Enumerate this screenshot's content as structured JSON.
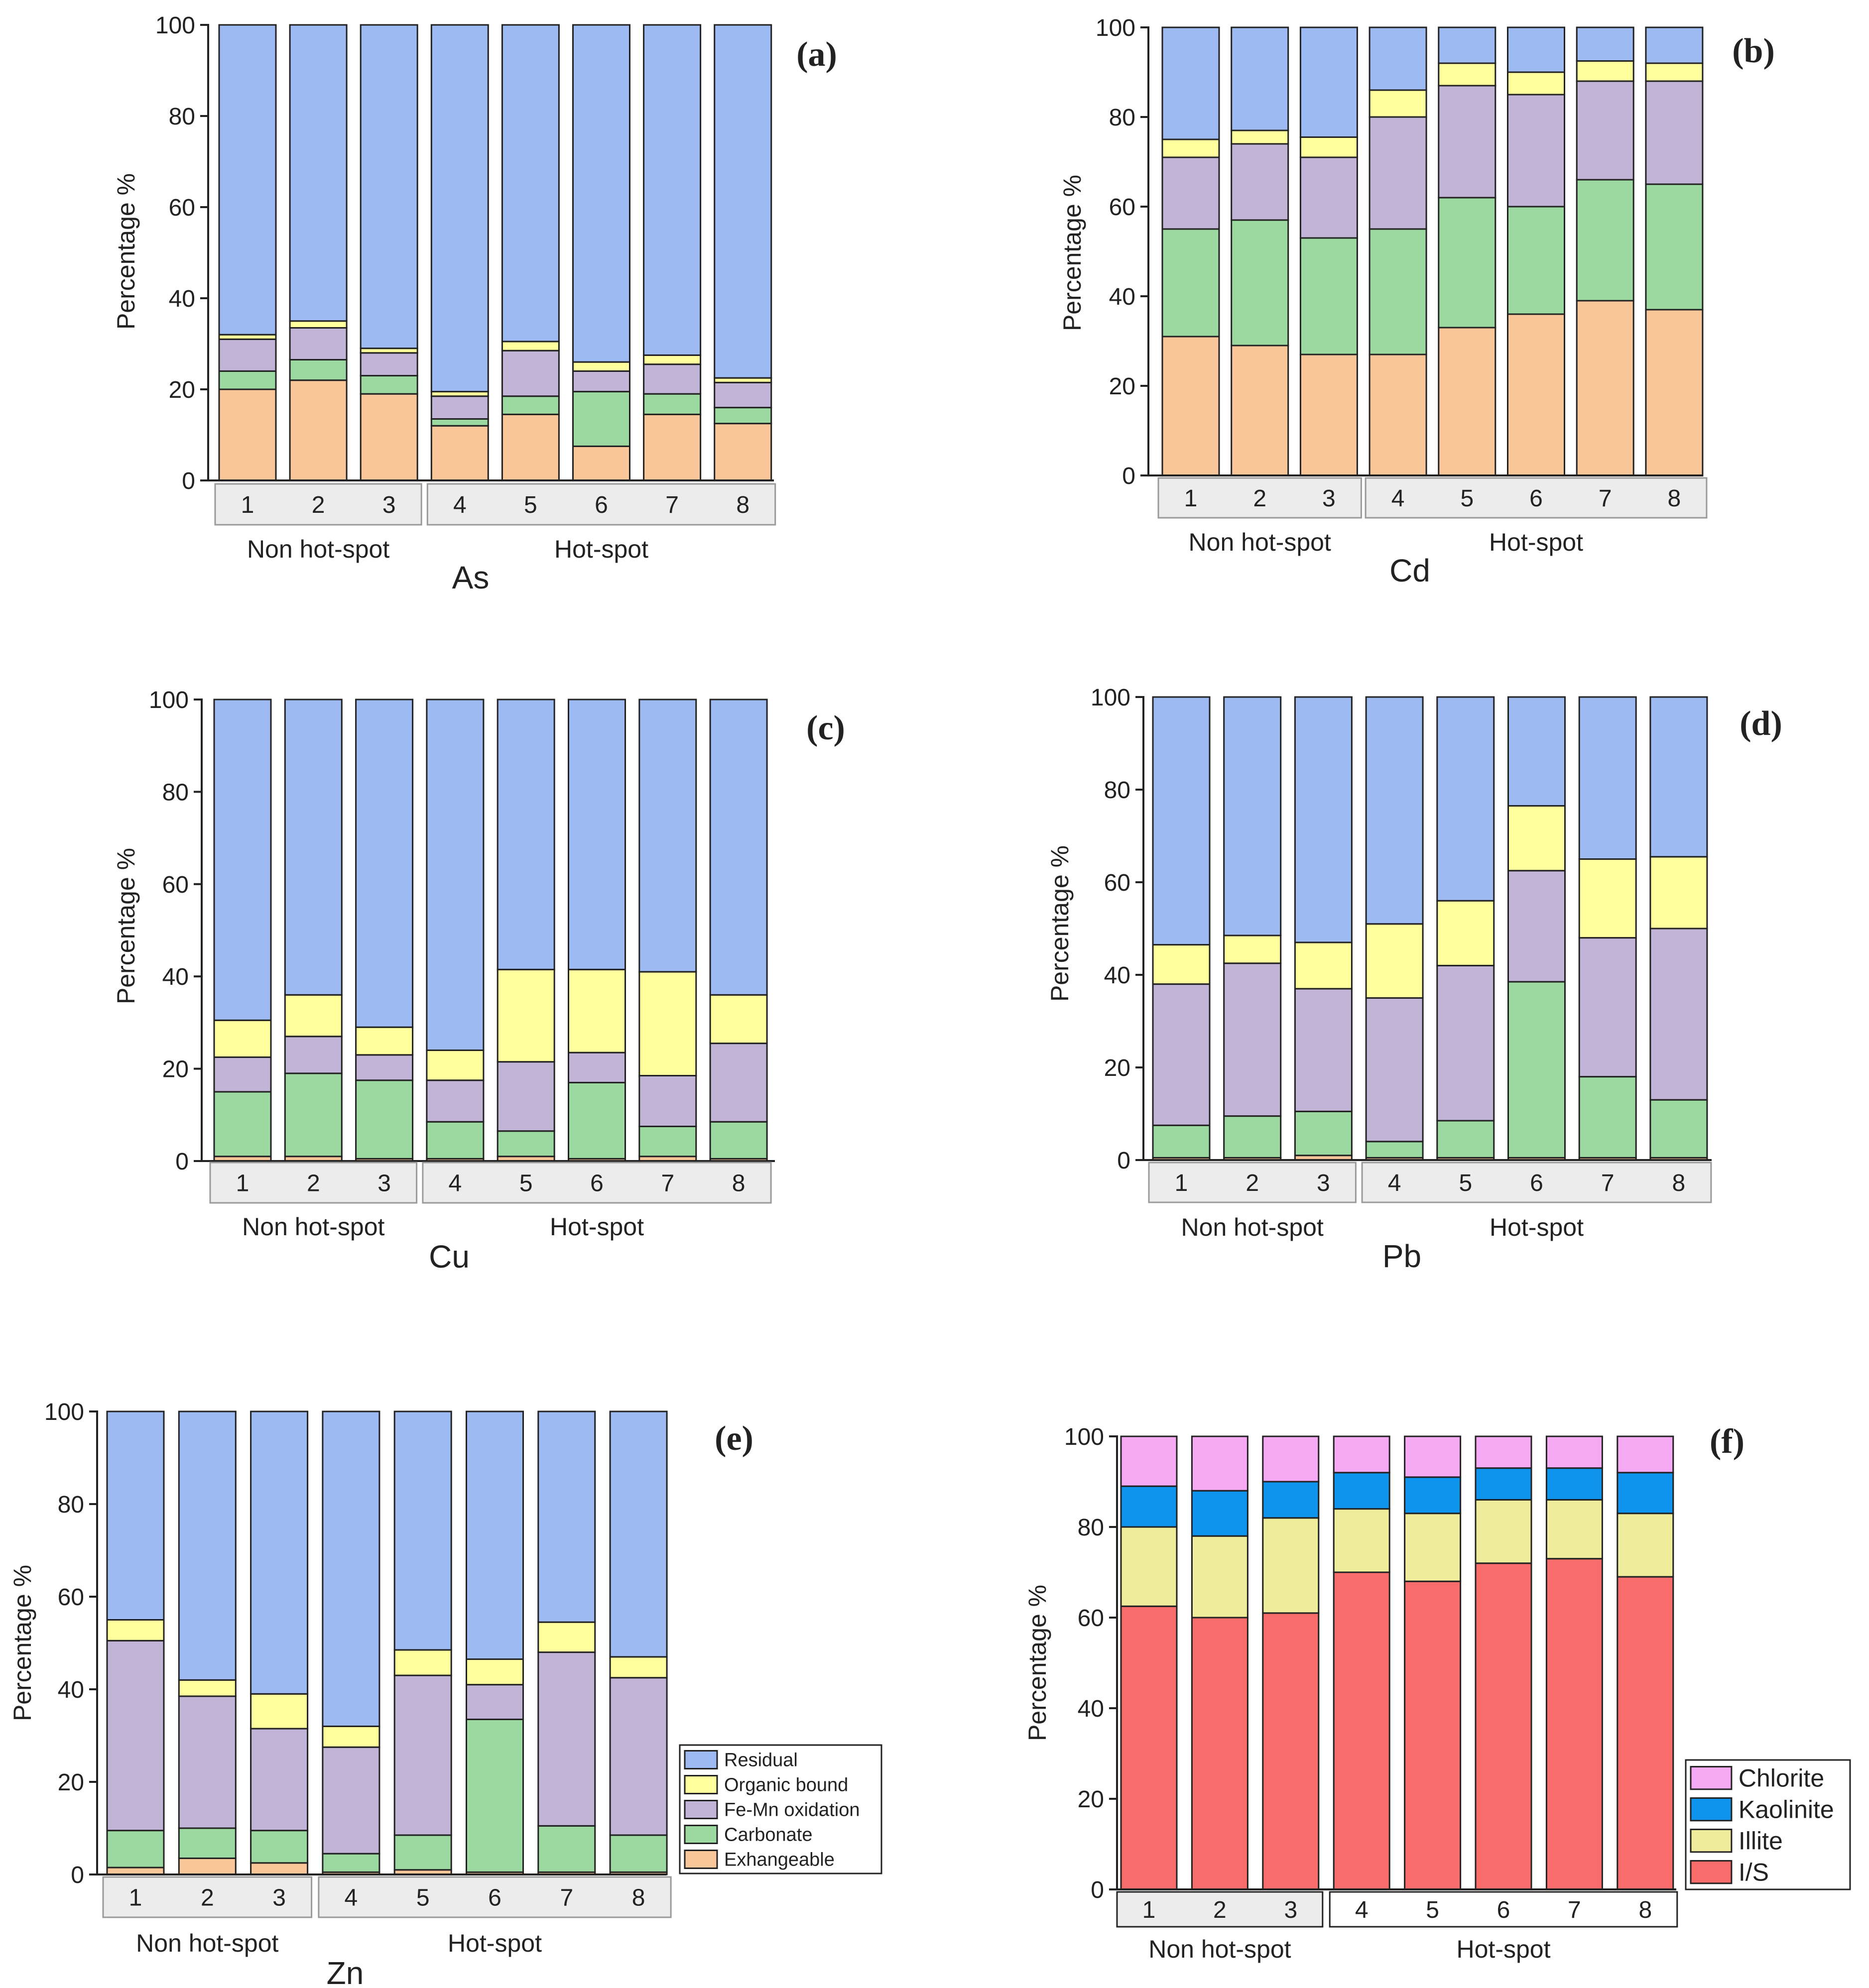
{
  "figure": {
    "background": "#ffffff",
    "frame_color": "#222222",
    "group_box_fill": "#ececec"
  },
  "chart_data": [
    {
      "id": "a",
      "panel_label": "(a)",
      "type": "bar",
      "stacked": true,
      "title": "As",
      "xlabel": "",
      "ylabel": "Percentage %",
      "ylim": [
        0,
        100
      ],
      "yticks": [
        0,
        20,
        40,
        60,
        80,
        100
      ],
      "grid": false,
      "categories": [
        "1",
        "2",
        "3",
        "4",
        "5",
        "6",
        "7",
        "8"
      ],
      "groups": [
        {
          "label": "Non hot-spot",
          "categories": [
            "1",
            "2",
            "3"
          ]
        },
        {
          "label": "Hot-spot",
          "categories": [
            "4",
            "5",
            "6",
            "7",
            "8"
          ]
        }
      ],
      "series": [
        {
          "name": "Exhangeable",
          "color": "#f9c69a",
          "values": [
            20,
            22,
            19,
            12,
            14.5,
            7.5,
            14.5,
            12.5
          ]
        },
        {
          "name": "Carbonate",
          "color": "#9bd9a0",
          "values": [
            4,
            4.5,
            4,
            1.5,
            4,
            12,
            4.5,
            3.5
          ]
        },
        {
          "name": "Fe-Mn oxidation",
          "color": "#c2b4d7",
          "values": [
            7,
            7,
            5,
            5,
            10,
            4.5,
            6.5,
            5.5
          ]
        },
        {
          "name": "Organic bound",
          "color": "#ffff9e",
          "values": [
            1,
            1.5,
            1,
            1,
            2,
            2,
            2,
            1
          ]
        },
        {
          "name": "Residual",
          "color": "#9dbaf3",
          "values": [
            68,
            65,
            71,
            80.5,
            69.5,
            74,
            72.5,
            77.5
          ]
        }
      ]
    },
    {
      "id": "b",
      "panel_label": "(b)",
      "type": "bar",
      "stacked": true,
      "title": "Cd",
      "xlabel": "",
      "ylabel": "Percentage %",
      "ylim": [
        0,
        100
      ],
      "yticks": [
        0,
        20,
        40,
        60,
        80,
        100
      ],
      "grid": false,
      "categories": [
        "1",
        "2",
        "3",
        "4",
        "5",
        "6",
        "7",
        "8"
      ],
      "groups": [
        {
          "label": "Non hot-spot",
          "categories": [
            "1",
            "2",
            "3"
          ]
        },
        {
          "label": "Hot-spot",
          "categories": [
            "4",
            "5",
            "6",
            "7",
            "8"
          ]
        }
      ],
      "series": [
        {
          "name": "Exhangeable",
          "color": "#f9c69a",
          "values": [
            31,
            29,
            27,
            27,
            33,
            36,
            39,
            37
          ]
        },
        {
          "name": "Carbonate",
          "color": "#9bd9a0",
          "values": [
            24,
            28,
            26,
            28,
            29,
            24,
            27,
            28
          ]
        },
        {
          "name": "Fe-Mn oxidation",
          "color": "#c2b4d7",
          "values": [
            16,
            17,
            18,
            25,
            25,
            25,
            22,
            23
          ]
        },
        {
          "name": "Organic bound",
          "color": "#ffff9e",
          "values": [
            4,
            3,
            4.5,
            6,
            5,
            5,
            4.5,
            4
          ]
        },
        {
          "name": "Residual",
          "color": "#9dbaf3",
          "values": [
            25,
            23,
            24.5,
            14,
            8,
            10,
            7.5,
            8
          ]
        }
      ]
    },
    {
      "id": "c",
      "panel_label": "(c)",
      "type": "bar",
      "stacked": true,
      "title": "Cu",
      "xlabel": "",
      "ylabel": "Percentage %",
      "ylim": [
        0,
        100
      ],
      "yticks": [
        0,
        20,
        40,
        60,
        80,
        100
      ],
      "grid": false,
      "categories": [
        "1",
        "2",
        "3",
        "4",
        "5",
        "6",
        "7",
        "8"
      ],
      "groups": [
        {
          "label": "Non hot-spot",
          "categories": [
            "1",
            "2",
            "3"
          ]
        },
        {
          "label": "Hot-spot",
          "categories": [
            "4",
            "5",
            "6",
            "7",
            "8"
          ]
        }
      ],
      "series": [
        {
          "name": "Exhangeable",
          "color": "#f9c69a",
          "values": [
            1,
            1,
            0.5,
            0.5,
            1,
            0.5,
            1,
            0.5
          ]
        },
        {
          "name": "Carbonate",
          "color": "#9bd9a0",
          "values": [
            14,
            18,
            17,
            8,
            5.5,
            16.5,
            6.5,
            8
          ]
        },
        {
          "name": "Fe-Mn oxidation",
          "color": "#c2b4d7",
          "values": [
            7.5,
            8,
            5.5,
            9,
            15,
            6.5,
            11,
            17
          ]
        },
        {
          "name": "Organic bound",
          "color": "#ffff9e",
          "values": [
            8,
            9,
            6,
            6.5,
            20,
            18,
            22.5,
            10.5
          ]
        },
        {
          "name": "Residual",
          "color": "#9dbaf3",
          "values": [
            69.5,
            64,
            71,
            76,
            58.5,
            58.5,
            59,
            64
          ]
        }
      ]
    },
    {
      "id": "d",
      "panel_label": "(d)",
      "type": "bar",
      "stacked": true,
      "title": "Pb",
      "xlabel": "",
      "ylabel": "Percentage %",
      "ylim": [
        0,
        100
      ],
      "yticks": [
        0,
        20,
        40,
        60,
        80,
        100
      ],
      "grid": false,
      "categories": [
        "1",
        "2",
        "3",
        "4",
        "5",
        "6",
        "7",
        "8"
      ],
      "groups": [
        {
          "label": "Non hot-spot",
          "categories": [
            "1",
            "2",
            "3"
          ]
        },
        {
          "label": "Hot-spot",
          "categories": [
            "4",
            "5",
            "6",
            "7",
            "8"
          ]
        }
      ],
      "series": [
        {
          "name": "Exhangeable",
          "color": "#f9c69a",
          "values": [
            0.5,
            0.5,
            1,
            0.5,
            0.5,
            0.5,
            0.5,
            0.5
          ]
        },
        {
          "name": "Carbonate",
          "color": "#9bd9a0",
          "values": [
            7,
            9,
            9.5,
            3.5,
            8,
            38,
            17.5,
            12.5
          ]
        },
        {
          "name": "Fe-Mn oxidation",
          "color": "#c2b4d7",
          "values": [
            30.5,
            33,
            26.5,
            31,
            33.5,
            24,
            30,
            37
          ]
        },
        {
          "name": "Organic bound",
          "color": "#ffff9e",
          "values": [
            8.5,
            6,
            10,
            16,
            14,
            14,
            17,
            15.5
          ]
        },
        {
          "name": "Residual",
          "color": "#9dbaf3",
          "values": [
            53.5,
            51.5,
            53,
            49,
            44,
            23.5,
            35,
            34.5
          ]
        }
      ]
    },
    {
      "id": "e",
      "panel_label": "(e)",
      "type": "bar",
      "stacked": true,
      "title": "Zn",
      "xlabel": "",
      "ylabel": "Percentage %",
      "ylim": [
        0,
        100
      ],
      "yticks": [
        0,
        20,
        40,
        60,
        80,
        100
      ],
      "grid": false,
      "legend": "right",
      "categories": [
        "1",
        "2",
        "3",
        "4",
        "5",
        "6",
        "7",
        "8"
      ],
      "groups": [
        {
          "label": "Non hot-spot",
          "categories": [
            "1",
            "2",
            "3"
          ]
        },
        {
          "label": "Hot-spot",
          "categories": [
            "4",
            "5",
            "6",
            "7",
            "8"
          ]
        }
      ],
      "series": [
        {
          "name": "Exhangeable",
          "color": "#f9c69a",
          "values": [
            1.5,
            3.5,
            2.5,
            0.5,
            1,
            0.5,
            0.5,
            0.5
          ]
        },
        {
          "name": "Carbonate",
          "color": "#9bd9a0",
          "values": [
            8,
            6.5,
            7,
            4,
            7.5,
            33,
            10,
            8
          ]
        },
        {
          "name": "Fe-Mn oxidation",
          "color": "#c2b4d7",
          "values": [
            41,
            28.5,
            22,
            23,
            34.5,
            7.5,
            37.5,
            34
          ]
        },
        {
          "name": "Organic bound",
          "color": "#ffff9e",
          "values": [
            4.5,
            3.5,
            7.5,
            4.5,
            5.5,
            5.5,
            6.5,
            4.5
          ]
        },
        {
          "name": "Residual",
          "color": "#9dbaf3",
          "values": [
            45,
            58,
            61,
            68,
            51.5,
            53.5,
            45.5,
            53
          ]
        }
      ]
    },
    {
      "id": "f",
      "panel_label": "(f)",
      "type": "bar",
      "stacked": true,
      "title": "",
      "xlabel": "",
      "ylabel": "Percentage %",
      "ylim": [
        0,
        100
      ],
      "yticks": [
        0,
        20,
        40,
        60,
        80,
        100
      ],
      "grid": false,
      "legend": "right",
      "categories": [
        "1",
        "2",
        "3",
        "4",
        "5",
        "6",
        "7",
        "8"
      ],
      "groups": [
        {
          "label": "Non hot-spot",
          "categories": [
            "1",
            "2",
            "3"
          ]
        },
        {
          "label": "Hot-spot",
          "categories": [
            "4",
            "5",
            "6",
            "7",
            "8"
          ]
        }
      ],
      "series": [
        {
          "name": "I/S",
          "color": "#f86c6b",
          "values": [
            62.5,
            60,
            61,
            70,
            68,
            72,
            73,
            69
          ]
        },
        {
          "name": "Illite",
          "color": "#efec9b",
          "values": [
            17.5,
            18,
            21,
            14,
            15,
            14,
            13,
            14
          ]
        },
        {
          "name": "Kaolinite",
          "color": "#0f94ee",
          "values": [
            9,
            10,
            8,
            8,
            8,
            7,
            7,
            9
          ]
        },
        {
          "name": "Chlorite",
          "color": "#f5a9f2",
          "values": [
            11,
            12,
            10,
            8,
            9,
            7,
            7,
            8
          ]
        }
      ]
    }
  ]
}
